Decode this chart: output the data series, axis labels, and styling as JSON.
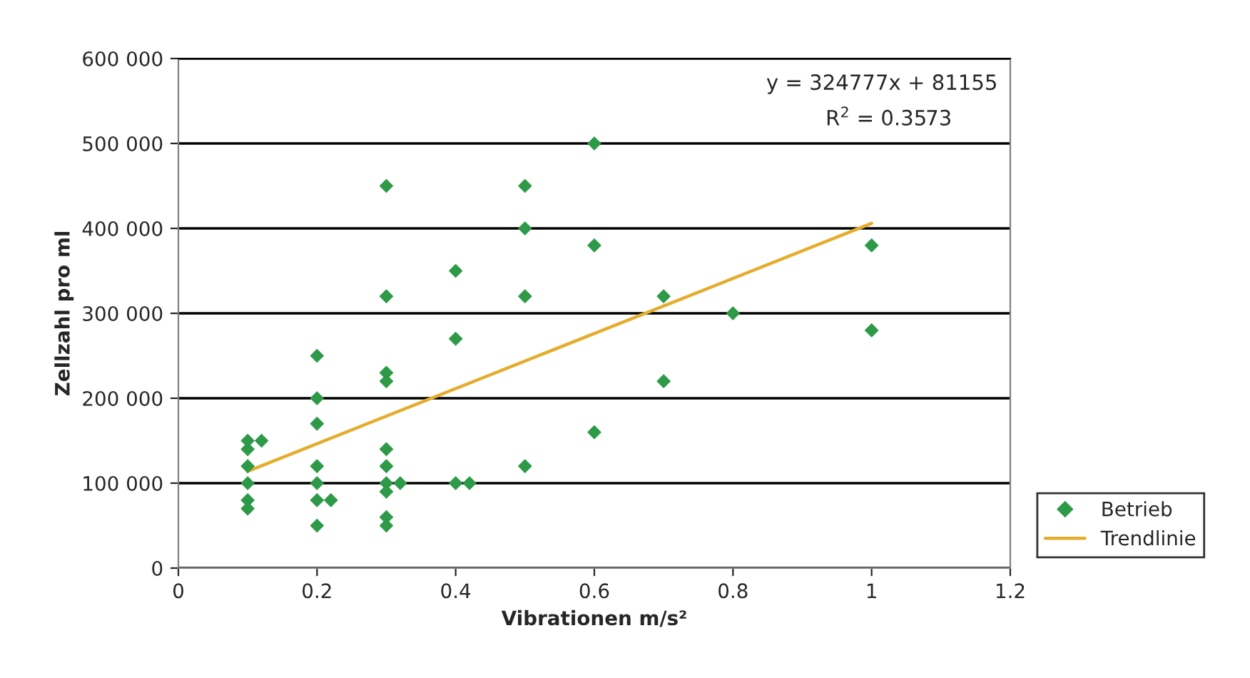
{
  "chart_data": {
    "type": "scatter",
    "xlabel": "Vibrationen m/s²",
    "ylabel": "Zellzahl pro ml",
    "xlim": [
      0,
      1.2
    ],
    "xticks": [
      0,
      {
        "value": 0.2,
        "label": "0.2"
      },
      {
        "value": 0.4,
        "label": "0.4"
      },
      {
        "value": 0.6,
        "label": "0.6"
      },
      {
        "value": 0.8,
        "label": "0.8"
      },
      1,
      {
        "value": 1.2,
        "label": "1.2"
      }
    ],
    "ylim": [
      0,
      600000
    ],
    "yticks": [
      0,
      {
        "value": 100000,
        "label": "100 000"
      },
      {
        "value": 200000,
        "label": "200 000"
      },
      {
        "value": 300000,
        "label": "300 000"
      },
      {
        "value": 400000,
        "label": "400 000"
      },
      {
        "value": 500000,
        "label": "500 000"
      },
      {
        "value": 600000,
        "label": "600 000"
      }
    ],
    "grid": "y",
    "legend": "right",
    "annotations": [
      "y = 324777x + 81155",
      "R$^{2}$ = 0.3573"
    ],
    "series": [
      {
        "name": "Betrieb",
        "marker": "diamond",
        "color": "#2e9a48",
        "x": [
          0.1,
          0.1,
          0.1,
          0.1,
          0.1,
          0.1,
          0.12,
          0.2,
          0.2,
          0.2,
          0.2,
          0.2,
          0.2,
          0.2,
          0.22,
          0.3,
          0.3,
          0.3,
          0.3,
          0.3,
          0.3,
          0.3,
          0.3,
          0.3,
          0.3,
          0.32,
          0.4,
          0.4,
          0.4,
          0.42,
          0.5,
          0.5,
          0.5,
          0.5,
          0.6,
          0.6,
          0.6,
          0.7,
          0.7,
          0.8,
          1,
          1
        ],
        "values": [
          150000,
          140000,
          120000,
          100000,
          80000,
          70000,
          150000,
          250000,
          200000,
          170000,
          120000,
          100000,
          80000,
          50000,
          80000,
          450000,
          320000,
          230000,
          220000,
          140000,
          120000,
          100000,
          90000,
          60000,
          50000,
          100000,
          350000,
          270000,
          100000,
          100000,
          450000,
          400000,
          320000,
          120000,
          500000,
          380000,
          160000,
          320000,
          220000,
          300000,
          380000,
          280000
        ]
      },
      {
        "name": "Trendlinie",
        "type": "line",
        "marker": "none",
        "color": "#e5ad2e",
        "x": [
          0.1,
          1
        ],
        "values": [
          114000,
          406000
        ]
      }
    ]
  }
}
